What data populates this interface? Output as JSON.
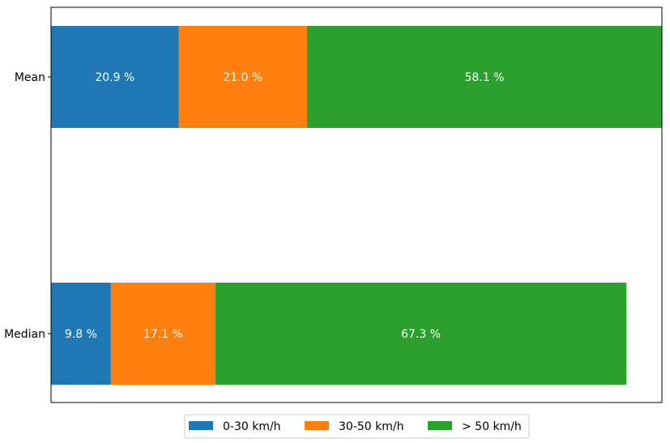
{
  "chart_data": {
    "type": "bar",
    "orientation": "horizontal",
    "stacked": true,
    "categories": [
      "Mean",
      "Median"
    ],
    "series": [
      {
        "name": "0-30 km/h",
        "color": "#1f77b4",
        "values": [
          20.9,
          9.8
        ],
        "labels": [
          "20.9 %",
          "9.8 %"
        ]
      },
      {
        "name": "30-50 km/h",
        "color": "#ff7f0e",
        "values": [
          21.0,
          17.1
        ],
        "labels": [
          "21.0 %",
          "17.1 %"
        ]
      },
      {
        "name": "> 50 km/h",
        "color": "#2ca02c",
        "values": [
          58.1,
          67.3
        ],
        "labels": [
          "58.1 %",
          "67.3 %"
        ]
      }
    ],
    "title": "",
    "xlabel": "",
    "ylabel": "",
    "xlim": [
      0,
      100
    ],
    "x_axis_visible": false,
    "grid": false,
    "legend_position": "bottom-center"
  }
}
